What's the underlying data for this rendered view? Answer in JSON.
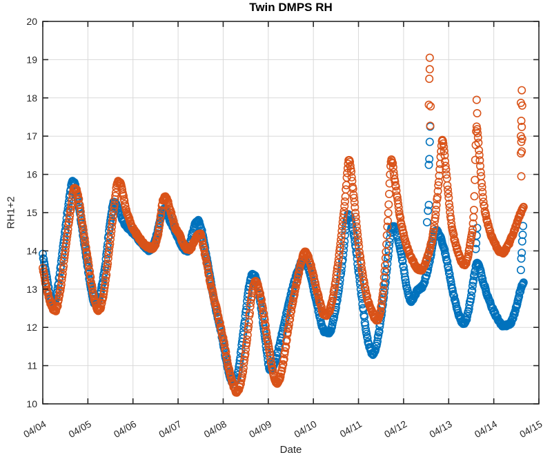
{
  "figure": {
    "title": "Twin DMPS RH",
    "xlabel": "Date",
    "ylabel": "RH1+2"
  },
  "chart_data": {
    "type": "scatter",
    "title": "Twin DMPS RH",
    "xlabel": "Date",
    "ylabel": "RH1+2",
    "x_unit": "days_after_04_04",
    "xlim": [
      0,
      11
    ],
    "ylim": [
      10,
      20
    ],
    "x_ticks": [
      "04/04",
      "04/05",
      "04/06",
      "04/07",
      "04/08",
      "04/09",
      "04/10",
      "04/11",
      "04/12",
      "04/13",
      "04/14",
      "04/15"
    ],
    "y_ticks": [
      "10",
      "11",
      "12",
      "13",
      "14",
      "15",
      "16",
      "17",
      "18",
      "19",
      "20"
    ],
    "grid": true,
    "legend": false,
    "marker": "open-circle",
    "axis_color": "#262626",
    "grid_color": "#d9d9d9",
    "series": [
      {
        "id": "blue",
        "color": "#0072bd",
        "points": [
          [
            0.0,
            13.9
          ],
          [
            0.08,
            13.35
          ],
          [
            0.18,
            12.75
          ],
          [
            0.24,
            12.65
          ],
          [
            0.32,
            12.95
          ],
          [
            0.45,
            14.1
          ],
          [
            0.58,
            15.3
          ],
          [
            0.66,
            15.8
          ],
          [
            0.72,
            15.7
          ],
          [
            0.82,
            15.0
          ],
          [
            0.95,
            13.95
          ],
          [
            1.08,
            12.95
          ],
          [
            1.16,
            12.62
          ],
          [
            1.26,
            12.8
          ],
          [
            1.38,
            13.6
          ],
          [
            1.5,
            14.8
          ],
          [
            1.58,
            15.28
          ],
          [
            1.66,
            15.15
          ],
          [
            1.76,
            14.85
          ],
          [
            1.88,
            14.6
          ],
          [
            2.02,
            14.45
          ],
          [
            2.2,
            14.2
          ],
          [
            2.38,
            14.02
          ],
          [
            2.5,
            14.3
          ],
          [
            2.62,
            14.9
          ],
          [
            2.7,
            15.1
          ],
          [
            2.8,
            14.85
          ],
          [
            2.94,
            14.5
          ],
          [
            3.08,
            14.15
          ],
          [
            3.2,
            14.0
          ],
          [
            3.32,
            14.45
          ],
          [
            3.42,
            14.8
          ],
          [
            3.52,
            14.55
          ],
          [
            3.65,
            13.7
          ],
          [
            3.8,
            12.7
          ],
          [
            3.95,
            11.9
          ],
          [
            4.1,
            10.95
          ],
          [
            4.22,
            10.55
          ],
          [
            4.32,
            10.75
          ],
          [
            4.45,
            11.9
          ],
          [
            4.58,
            13.1
          ],
          [
            4.66,
            13.4
          ],
          [
            4.78,
            13.0
          ],
          [
            4.92,
            11.8
          ],
          [
            5.04,
            10.9
          ],
          [
            5.15,
            11.1
          ],
          [
            5.3,
            11.8
          ],
          [
            5.45,
            12.6
          ],
          [
            5.62,
            13.35
          ],
          [
            5.78,
            13.75
          ],
          [
            5.92,
            13.45
          ],
          [
            6.08,
            12.6
          ],
          [
            6.25,
            11.9
          ],
          [
            6.35,
            11.88
          ],
          [
            6.48,
            12.4
          ],
          [
            6.62,
            13.5
          ],
          [
            6.78,
            14.95
          ],
          [
            6.9,
            14.4
          ],
          [
            7.05,
            13.0
          ],
          [
            7.2,
            11.7
          ],
          [
            7.32,
            11.3
          ],
          [
            7.45,
            11.85
          ],
          [
            7.6,
            13.2
          ],
          [
            7.75,
            14.62
          ],
          [
            7.82,
            14.55
          ],
          [
            7.95,
            13.9
          ],
          [
            8.08,
            13.0
          ],
          [
            8.16,
            12.7
          ],
          [
            8.3,
            12.95
          ],
          [
            8.45,
            13.15
          ],
          [
            8.58,
            13.75
          ],
          [
            8.72,
            14.52
          ],
          [
            8.82,
            14.35
          ],
          [
            8.95,
            13.8
          ],
          [
            9.1,
            12.9
          ],
          [
            9.25,
            12.25
          ],
          [
            9.35,
            12.1
          ],
          [
            9.48,
            12.7
          ],
          [
            9.58,
            13.45
          ],
          [
            9.64,
            13.7
          ],
          [
            9.75,
            13.25
          ],
          [
            9.9,
            12.7
          ],
          [
            10.05,
            12.3
          ],
          [
            10.2,
            12.05
          ],
          [
            10.35,
            12.08
          ],
          [
            10.48,
            12.45
          ],
          [
            10.6,
            13.0
          ],
          [
            10.66,
            13.2
          ]
        ],
        "sparse_points": [
          [
            8.52,
            14.75
          ],
          [
            8.54,
            15.05
          ],
          [
            8.56,
            15.2
          ],
          [
            8.56,
            16.25
          ],
          [
            8.57,
            16.4
          ],
          [
            8.58,
            16.85
          ],
          [
            8.59,
            17.25
          ],
          [
            9.6,
            14.05
          ],
          [
            9.61,
            14.2
          ],
          [
            9.62,
            14.4
          ],
          [
            9.63,
            14.6
          ],
          [
            10.6,
            13.5
          ],
          [
            10.61,
            13.8
          ],
          [
            10.62,
            13.95
          ],
          [
            10.63,
            14.25
          ],
          [
            10.64,
            14.42
          ],
          [
            10.65,
            14.65
          ],
          [
            10.62,
            15.05
          ]
        ]
      },
      {
        "id": "orange",
        "color": "#d95319",
        "points": [
          [
            0.0,
            13.55
          ],
          [
            0.1,
            12.95
          ],
          [
            0.22,
            12.5
          ],
          [
            0.28,
            12.45
          ],
          [
            0.38,
            12.9
          ],
          [
            0.5,
            14.0
          ],
          [
            0.62,
            15.1
          ],
          [
            0.7,
            15.62
          ],
          [
            0.76,
            15.55
          ],
          [
            0.86,
            14.85
          ],
          [
            1.0,
            13.75
          ],
          [
            1.14,
            12.75
          ],
          [
            1.24,
            12.45
          ],
          [
            1.34,
            12.8
          ],
          [
            1.46,
            13.9
          ],
          [
            1.58,
            15.1
          ],
          [
            1.66,
            15.8
          ],
          [
            1.74,
            15.7
          ],
          [
            1.84,
            15.1
          ],
          [
            1.96,
            14.7
          ],
          [
            2.1,
            14.4
          ],
          [
            2.28,
            14.15
          ],
          [
            2.44,
            14.08
          ],
          [
            2.56,
            14.45
          ],
          [
            2.66,
            15.3
          ],
          [
            2.72,
            15.4
          ],
          [
            2.82,
            15.1
          ],
          [
            2.94,
            14.6
          ],
          [
            3.04,
            14.4
          ],
          [
            3.16,
            14.1
          ],
          [
            3.26,
            14.05
          ],
          [
            3.38,
            14.3
          ],
          [
            3.48,
            14.45
          ],
          [
            3.58,
            14.0
          ],
          [
            3.72,
            13.15
          ],
          [
            3.86,
            12.45
          ],
          [
            4.0,
            11.7
          ],
          [
            4.15,
            10.8
          ],
          [
            4.3,
            10.32
          ],
          [
            4.4,
            10.6
          ],
          [
            4.52,
            11.6
          ],
          [
            4.64,
            12.9
          ],
          [
            4.72,
            13.2
          ],
          [
            4.84,
            12.75
          ],
          [
            4.98,
            11.7
          ],
          [
            5.12,
            10.75
          ],
          [
            5.2,
            10.55
          ],
          [
            5.32,
            11.0
          ],
          [
            5.46,
            12.1
          ],
          [
            5.62,
            13.1
          ],
          [
            5.82,
            13.95
          ],
          [
            5.95,
            13.6
          ],
          [
            6.1,
            12.85
          ],
          [
            6.26,
            12.32
          ],
          [
            6.4,
            12.6
          ],
          [
            6.55,
            13.7
          ],
          [
            6.7,
            15.3
          ],
          [
            6.79,
            16.4
          ],
          [
            6.88,
            15.6
          ],
          [
            7.0,
            14.2
          ],
          [
            7.15,
            13.0
          ],
          [
            7.3,
            12.4
          ],
          [
            7.42,
            12.2
          ],
          [
            7.55,
            13.0
          ],
          [
            7.66,
            15.0
          ],
          [
            7.73,
            16.4
          ],
          [
            7.8,
            15.9
          ],
          [
            7.92,
            14.9
          ],
          [
            8.05,
            14.2
          ],
          [
            8.2,
            13.75
          ],
          [
            8.38,
            13.5
          ],
          [
            8.52,
            13.8
          ],
          [
            8.66,
            14.5
          ],
          [
            8.78,
            15.8
          ],
          [
            8.86,
            16.88
          ],
          [
            8.94,
            16.1
          ],
          [
            9.05,
            14.8
          ],
          [
            9.2,
            14.0
          ],
          [
            9.35,
            13.65
          ],
          [
            9.48,
            14.2
          ],
          [
            9.56,
            15.1
          ],
          [
            9.62,
            17.25
          ],
          [
            9.68,
            16.5
          ],
          [
            9.76,
            15.4
          ],
          [
            9.88,
            14.65
          ],
          [
            10.02,
            14.2
          ],
          [
            10.18,
            13.95
          ],
          [
            10.32,
            14.15
          ],
          [
            10.46,
            14.55
          ],
          [
            10.58,
            14.95
          ],
          [
            10.66,
            15.15
          ]
        ],
        "sparse_points": [
          [
            8.58,
            19.05
          ],
          [
            8.58,
            18.75
          ],
          [
            8.57,
            18.5
          ],
          [
            8.56,
            17.82
          ],
          [
            8.6,
            17.78
          ],
          [
            8.59,
            17.27
          ],
          [
            9.62,
            17.95
          ],
          [
            9.63,
            17.6
          ],
          [
            10.62,
            18.2
          ],
          [
            10.6,
            17.87
          ],
          [
            10.63,
            17.8
          ],
          [
            10.61,
            17.4
          ],
          [
            10.62,
            17.24
          ],
          [
            10.6,
            17.0
          ],
          [
            10.63,
            16.93
          ],
          [
            10.61,
            16.85
          ],
          [
            10.62,
            16.6
          ],
          [
            10.6,
            16.55
          ],
          [
            10.61,
            15.95
          ]
        ]
      }
    ]
  }
}
